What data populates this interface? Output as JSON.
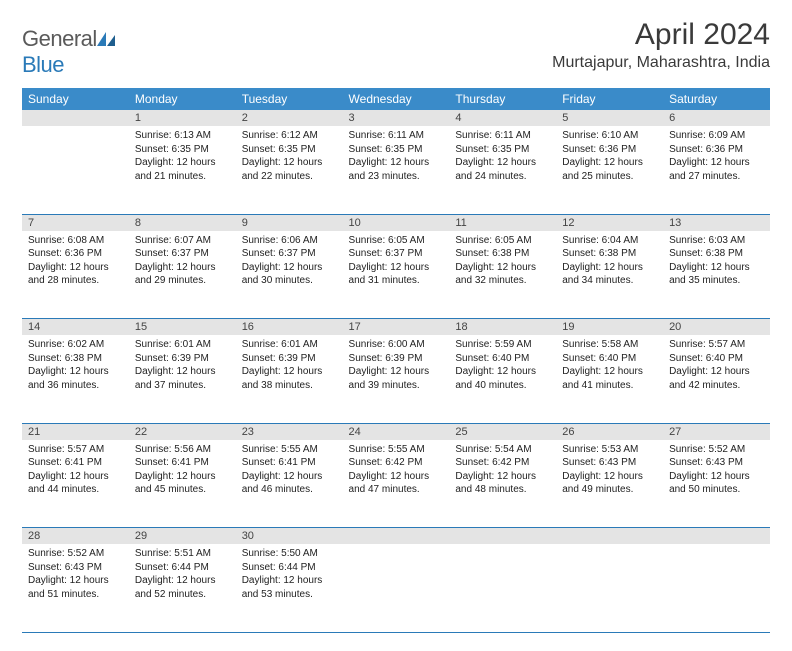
{
  "brand": {
    "left": "General",
    "right": "Blue"
  },
  "title": "April 2024",
  "location": "Murtajapur, Maharashtra, India",
  "colors": {
    "header_bg": "#3a8bc9",
    "header_text": "#ffffff",
    "daynum_bg": "#e4e4e4",
    "rule": "#2a7ab8",
    "logo_gray": "#5a5a5a",
    "logo_blue": "#2a7ab8"
  },
  "day_headers": [
    "Sunday",
    "Monday",
    "Tuesday",
    "Wednesday",
    "Thursday",
    "Friday",
    "Saturday"
  ],
  "weeks": [
    {
      "nums": [
        "",
        "1",
        "2",
        "3",
        "4",
        "5",
        "6"
      ],
      "cells": [
        null,
        {
          "sunrise": "6:13 AM",
          "sunset": "6:35 PM",
          "daylight": "12 hours and 21 minutes."
        },
        {
          "sunrise": "6:12 AM",
          "sunset": "6:35 PM",
          "daylight": "12 hours and 22 minutes."
        },
        {
          "sunrise": "6:11 AM",
          "sunset": "6:35 PM",
          "daylight": "12 hours and 23 minutes."
        },
        {
          "sunrise": "6:11 AM",
          "sunset": "6:35 PM",
          "daylight": "12 hours and 24 minutes."
        },
        {
          "sunrise": "6:10 AM",
          "sunset": "6:36 PM",
          "daylight": "12 hours and 25 minutes."
        },
        {
          "sunrise": "6:09 AM",
          "sunset": "6:36 PM",
          "daylight": "12 hours and 27 minutes."
        }
      ]
    },
    {
      "nums": [
        "7",
        "8",
        "9",
        "10",
        "11",
        "12",
        "13"
      ],
      "cells": [
        {
          "sunrise": "6:08 AM",
          "sunset": "6:36 PM",
          "daylight": "12 hours and 28 minutes."
        },
        {
          "sunrise": "6:07 AM",
          "sunset": "6:37 PM",
          "daylight": "12 hours and 29 minutes."
        },
        {
          "sunrise": "6:06 AM",
          "sunset": "6:37 PM",
          "daylight": "12 hours and 30 minutes."
        },
        {
          "sunrise": "6:05 AM",
          "sunset": "6:37 PM",
          "daylight": "12 hours and 31 minutes."
        },
        {
          "sunrise": "6:05 AM",
          "sunset": "6:38 PM",
          "daylight": "12 hours and 32 minutes."
        },
        {
          "sunrise": "6:04 AM",
          "sunset": "6:38 PM",
          "daylight": "12 hours and 34 minutes."
        },
        {
          "sunrise": "6:03 AM",
          "sunset": "6:38 PM",
          "daylight": "12 hours and 35 minutes."
        }
      ]
    },
    {
      "nums": [
        "14",
        "15",
        "16",
        "17",
        "18",
        "19",
        "20"
      ],
      "cells": [
        {
          "sunrise": "6:02 AM",
          "sunset": "6:38 PM",
          "daylight": "12 hours and 36 minutes."
        },
        {
          "sunrise": "6:01 AM",
          "sunset": "6:39 PM",
          "daylight": "12 hours and 37 minutes."
        },
        {
          "sunrise": "6:01 AM",
          "sunset": "6:39 PM",
          "daylight": "12 hours and 38 minutes."
        },
        {
          "sunrise": "6:00 AM",
          "sunset": "6:39 PM",
          "daylight": "12 hours and 39 minutes."
        },
        {
          "sunrise": "5:59 AM",
          "sunset": "6:40 PM",
          "daylight": "12 hours and 40 minutes."
        },
        {
          "sunrise": "5:58 AM",
          "sunset": "6:40 PM",
          "daylight": "12 hours and 41 minutes."
        },
        {
          "sunrise": "5:57 AM",
          "sunset": "6:40 PM",
          "daylight": "12 hours and 42 minutes."
        }
      ]
    },
    {
      "nums": [
        "21",
        "22",
        "23",
        "24",
        "25",
        "26",
        "27"
      ],
      "cells": [
        {
          "sunrise": "5:57 AM",
          "sunset": "6:41 PM",
          "daylight": "12 hours and 44 minutes."
        },
        {
          "sunrise": "5:56 AM",
          "sunset": "6:41 PM",
          "daylight": "12 hours and 45 minutes."
        },
        {
          "sunrise": "5:55 AM",
          "sunset": "6:41 PM",
          "daylight": "12 hours and 46 minutes."
        },
        {
          "sunrise": "5:55 AM",
          "sunset": "6:42 PM",
          "daylight": "12 hours and 47 minutes."
        },
        {
          "sunrise": "5:54 AM",
          "sunset": "6:42 PM",
          "daylight": "12 hours and 48 minutes."
        },
        {
          "sunrise": "5:53 AM",
          "sunset": "6:43 PM",
          "daylight": "12 hours and 49 minutes."
        },
        {
          "sunrise": "5:52 AM",
          "sunset": "6:43 PM",
          "daylight": "12 hours and 50 minutes."
        }
      ]
    },
    {
      "nums": [
        "28",
        "29",
        "30",
        "",
        "",
        "",
        ""
      ],
      "cells": [
        {
          "sunrise": "5:52 AM",
          "sunset": "6:43 PM",
          "daylight": "12 hours and 51 minutes."
        },
        {
          "sunrise": "5:51 AM",
          "sunset": "6:44 PM",
          "daylight": "12 hours and 52 minutes."
        },
        {
          "sunrise": "5:50 AM",
          "sunset": "6:44 PM",
          "daylight": "12 hours and 53 minutes."
        },
        null,
        null,
        null,
        null
      ]
    }
  ],
  "labels": {
    "sunrise": "Sunrise:",
    "sunset": "Sunset:",
    "daylight": "Daylight:"
  }
}
